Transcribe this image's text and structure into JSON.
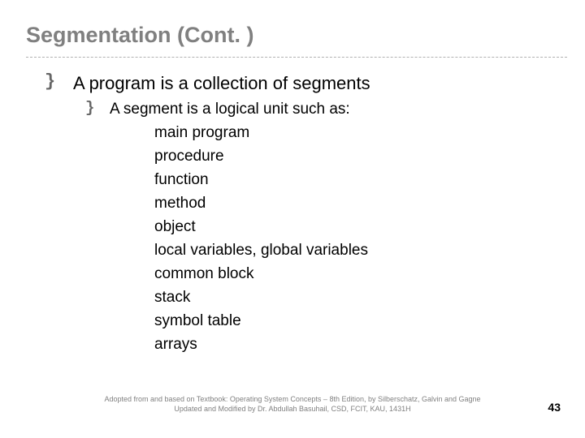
{
  "title": "Segmentation (Cont. )",
  "level1_bullet_glyph": "}",
  "level1_text": "A program is a collection of segments",
  "level2_bullet_glyph": "}",
  "level2_text": "A segment is a logical unit such as:",
  "list_items": [
    "main program",
    "procedure",
    "function",
    "method",
    "object",
    "local variables, global variables",
    "common block",
    "stack",
    "symbol table",
    "arrays"
  ],
  "footer_line1": "Adopted from and based on Textbook: Operating System Concepts – 8th Edition, by Silberschatz, Galvin and Gagne",
  "footer_line2": "Updated and Modified by Dr. Abdullah Basuhail, CSD, FCIT, KAU, 1431H",
  "page_number": "43",
  "colors": {
    "title": "#808080",
    "body": "#000000",
    "divider": "#b0b0b0",
    "footer": "#808080",
    "background": "#ffffff"
  },
  "fonts": {
    "title_size_pt": 27,
    "level1_size_pt": 22,
    "level2_size_pt": 19,
    "list_size_pt": 19,
    "footer_size_pt": 9,
    "pagenum_size_pt": 14
  }
}
